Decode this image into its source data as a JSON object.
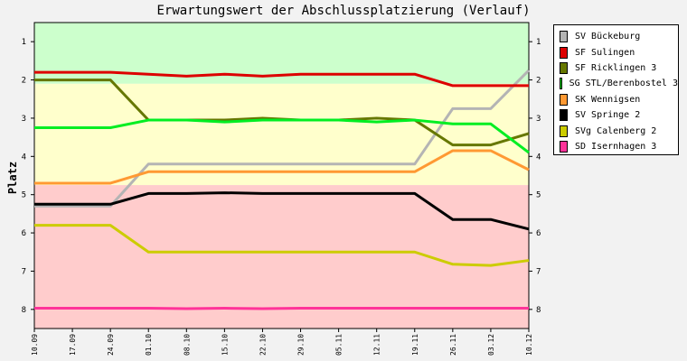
{
  "chart_data": {
    "type": "line",
    "title": "Erwartungswert der Abschlussplatzierung (Verlauf)",
    "ylabel": "Platz",
    "xlabel": "",
    "ylim": [
      8,
      1
    ],
    "yticks": [
      1,
      2,
      3,
      4,
      5,
      6,
      7,
      8
    ],
    "y_inverted": true,
    "x": [
      "10.09",
      "17.09",
      "24.09",
      "01.10",
      "08.10",
      "15.10",
      "22.10",
      "29.10",
      "05.11",
      "12.11",
      "19.11",
      "26.11",
      "03.12",
      "10.12"
    ],
    "zones": [
      {
        "from": 0.5,
        "to": 2.1,
        "color": "#ccffcc"
      },
      {
        "from": 2.1,
        "to": 4.75,
        "color": "#ffffcc"
      },
      {
        "from": 4.75,
        "to": 8.5,
        "color": "#ffcccc"
      }
    ],
    "series": [
      {
        "name": "SV Bückeburg",
        "color": "#b4b4b4",
        "values": [
          5.3,
          5.3,
          5.3,
          4.2,
          4.2,
          4.2,
          4.2,
          4.2,
          4.2,
          4.2,
          4.2,
          2.75,
          2.75,
          1.75
        ]
      },
      {
        "name": "SF Sulingen",
        "color": "#dd0000",
        "values": [
          1.8,
          1.8,
          1.8,
          1.85,
          1.9,
          1.85,
          1.9,
          1.85,
          1.85,
          1.85,
          1.85,
          2.15,
          2.15,
          2.15
        ]
      },
      {
        "name": "SF Ricklingen 3",
        "color": "#667700",
        "values": [
          2.0,
          2.0,
          2.0,
          3.05,
          3.05,
          3.05,
          3.0,
          3.05,
          3.05,
          3.0,
          3.05,
          3.7,
          3.7,
          3.4
        ]
      },
      {
        "name": "SG STL/Berenbostel 3",
        "color": "#00ee22",
        "values": [
          3.25,
          3.25,
          3.25,
          3.05,
          3.05,
          3.1,
          3.05,
          3.05,
          3.05,
          3.1,
          3.05,
          3.15,
          3.15,
          3.9
        ]
      },
      {
        "name": "SK Wennigsen",
        "color": "#ff9933",
        "values": [
          4.7,
          4.7,
          4.7,
          4.4,
          4.4,
          4.4,
          4.4,
          4.4,
          4.4,
          4.4,
          4.4,
          3.85,
          3.85,
          4.35
        ]
      },
      {
        "name": "SV Springe 2",
        "color": "#000000",
        "values": [
          5.25,
          5.25,
          5.25,
          4.97,
          4.97,
          4.95,
          4.97,
          4.97,
          4.97,
          4.97,
          4.97,
          5.65,
          5.65,
          5.9
        ]
      },
      {
        "name": "SVg Calenberg 2",
        "color": "#cccc00",
        "values": [
          5.8,
          5.8,
          5.8,
          6.5,
          6.5,
          6.5,
          6.5,
          6.5,
          6.5,
          6.5,
          6.5,
          6.82,
          6.85,
          6.72
        ]
      },
      {
        "name": "SD Isernhagen 3",
        "color": "#ff3399",
        "values": [
          7.97,
          7.97,
          7.97,
          7.97,
          7.98,
          7.97,
          7.98,
          7.97,
          7.97,
          7.97,
          7.97,
          7.97,
          7.97,
          7.97
        ]
      }
    ],
    "grid": false,
    "legend_position": "right"
  }
}
